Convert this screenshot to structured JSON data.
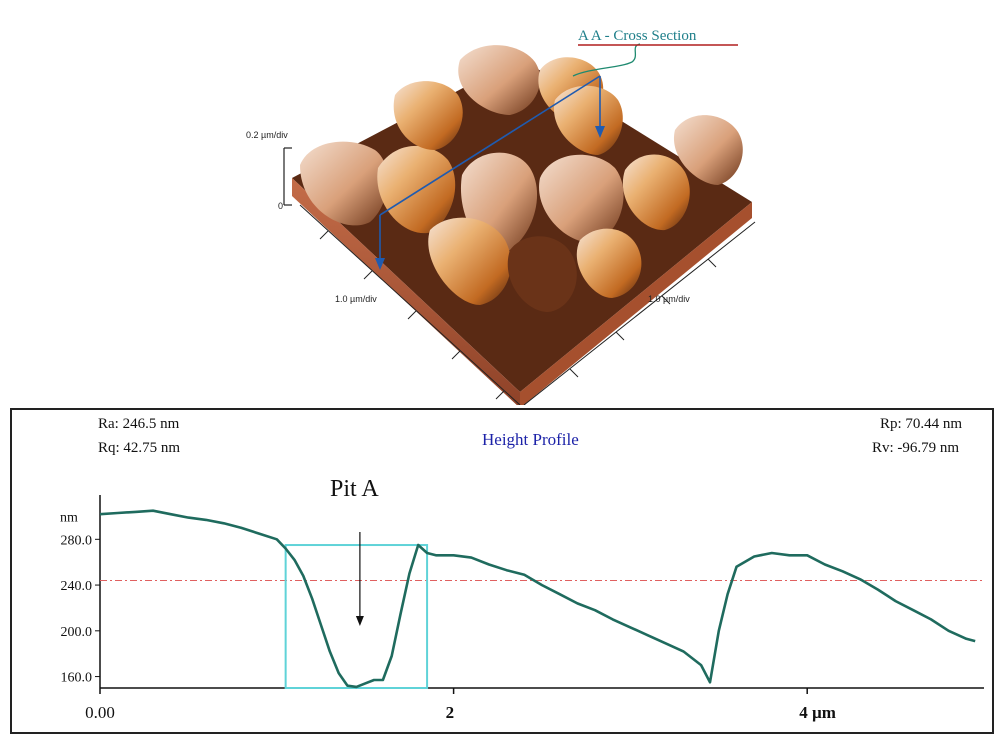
{
  "afm_view": {
    "cross_section_label": "A A - Cross Section",
    "z_scale": "0.2 µm/div",
    "z_zero": "0",
    "x_scale": "1.0 µm/div",
    "y_scale": "1.0 µm/div",
    "colors": {
      "surface_base": "#b45a3c",
      "highlight": "#f2d9c6",
      "mid": "#d88a35",
      "shadow": "#5a2a14",
      "arrow": "#1f5bb0",
      "leader": "#1f8a70"
    }
  },
  "profile_panel": {
    "title": "Height Profile",
    "stats_left": [
      "Ra: 246.5 nm",
      "Rq: 42.75 nm"
    ],
    "stats_right": [
      "Rp: 70.44 nm",
      "Rv: -96.79 nm"
    ],
    "annotation": "Pit A"
  },
  "chart_data": {
    "type": "line",
    "title": "Height Profile",
    "xlabel": "µm",
    "ylabel": "nm",
    "xlim": [
      0,
      5
    ],
    "ylim": [
      150,
      310
    ],
    "x_ticks": [
      0,
      2,
      4
    ],
    "x_tick_labels": [
      "0.00",
      "2",
      "4 µm"
    ],
    "y_ticks": [
      160,
      200,
      240,
      280
    ],
    "y_tick_labels": [
      "160.0",
      "200.0",
      "240.0",
      "280.0"
    ],
    "y_unit_label": "nm",
    "mean_line": 244,
    "highlight_region": {
      "x": [
        1.05,
        1.85
      ],
      "y": [
        150,
        275
      ]
    },
    "grid": false,
    "series": [
      {
        "color": "#1f6b5e",
        "x": [
          0.0,
          0.1,
          0.2,
          0.3,
          0.4,
          0.5,
          0.6,
          0.7,
          0.8,
          0.9,
          1.0,
          1.05,
          1.1,
          1.15,
          1.2,
          1.25,
          1.3,
          1.35,
          1.4,
          1.45,
          1.5,
          1.55,
          1.6,
          1.65,
          1.7,
          1.75,
          1.8,
          1.85,
          1.9,
          2.0,
          2.1,
          2.2,
          2.3,
          2.4,
          2.5,
          2.6,
          2.7,
          2.8,
          2.9,
          3.0,
          3.1,
          3.2,
          3.3,
          3.4,
          3.45,
          3.5,
          3.55,
          3.6,
          3.7,
          3.8,
          3.9,
          4.0,
          4.1,
          4.2,
          4.3,
          4.4,
          4.5,
          4.6,
          4.7,
          4.8,
          4.9,
          4.95
        ],
        "y": [
          302,
          303,
          304,
          305,
          302,
          299,
          297,
          294,
          290,
          285,
          280,
          272,
          262,
          248,
          228,
          205,
          182,
          163,
          152,
          151,
          154,
          157,
          157,
          178,
          215,
          250,
          275,
          268,
          266,
          266,
          264,
          258,
          253,
          249,
          240,
          232,
          224,
          218,
          210,
          203,
          196,
          189,
          182,
          170,
          155,
          200,
          232,
          256,
          265,
          268,
          266,
          266,
          258,
          252,
          245,
          236,
          226,
          218,
          210,
          200,
          193,
          191
        ]
      }
    ]
  }
}
